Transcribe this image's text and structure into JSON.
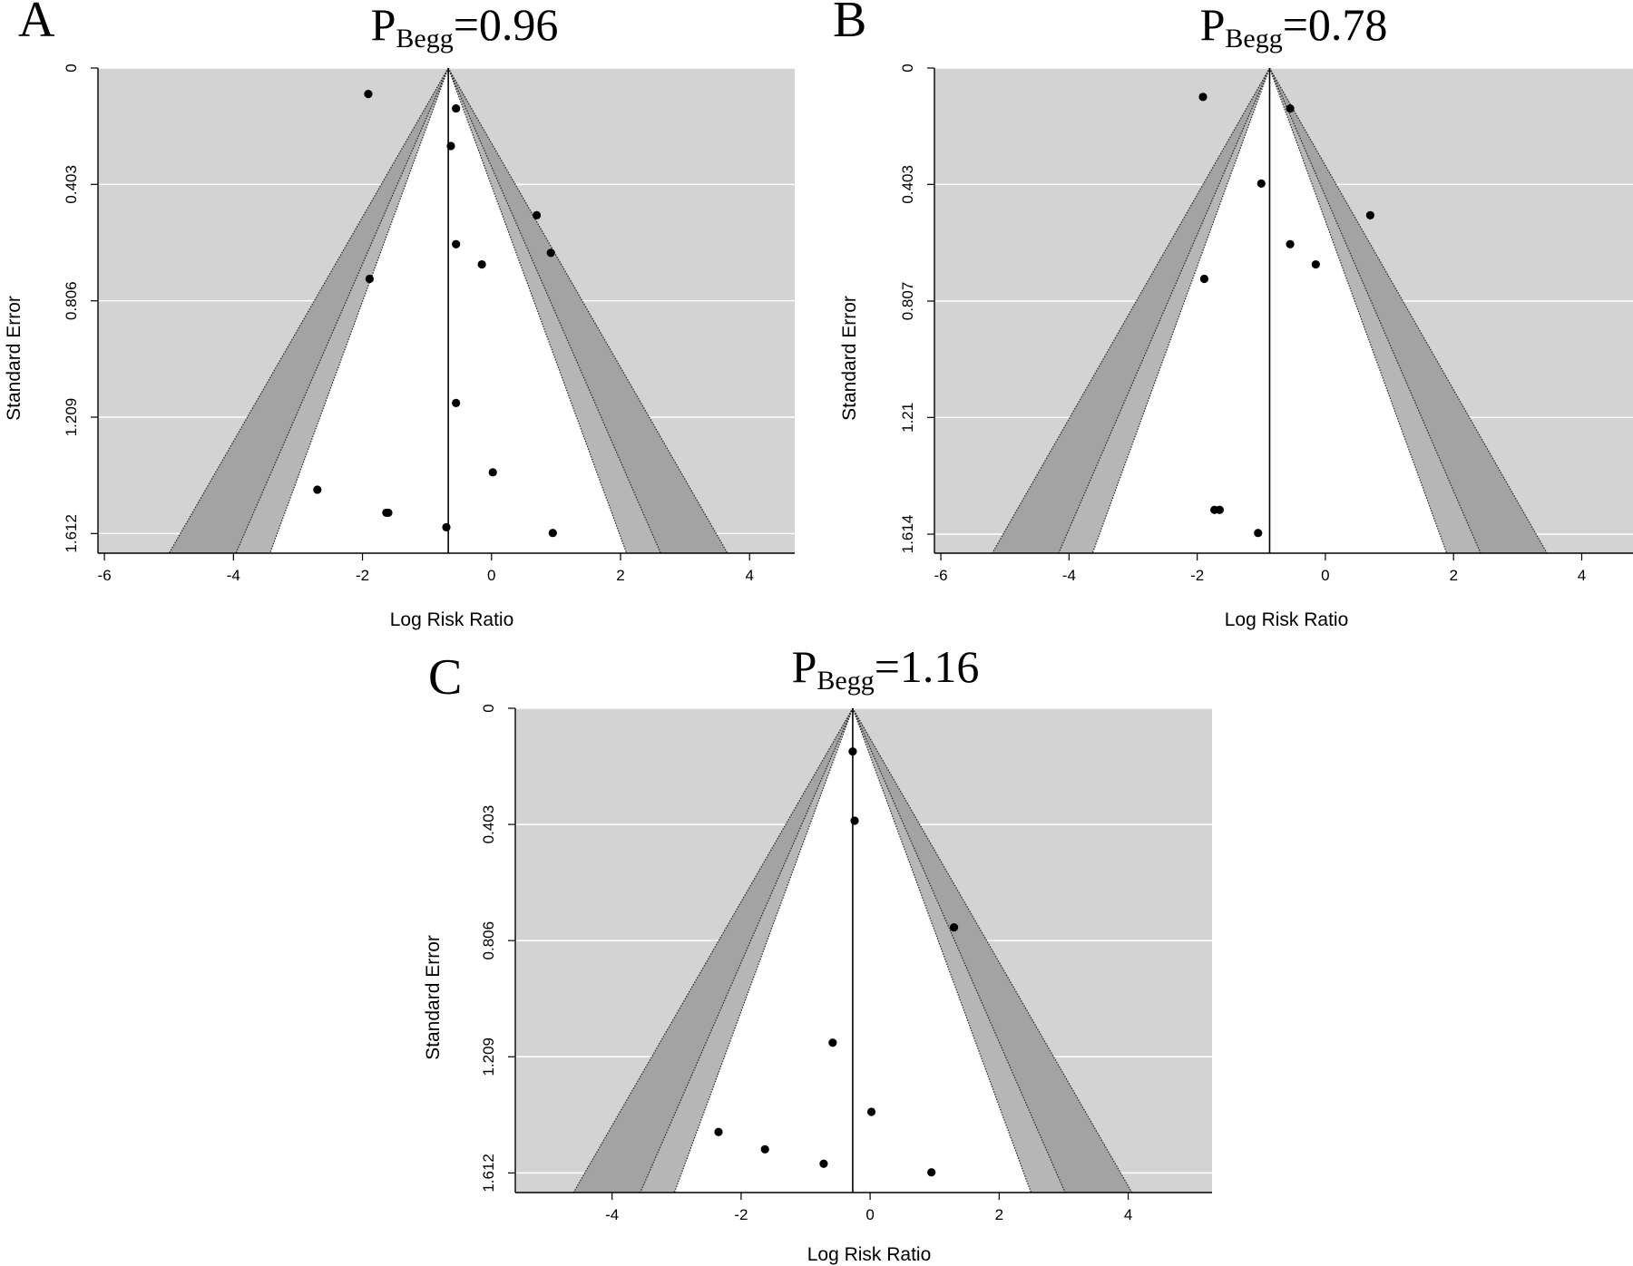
{
  "chart_data": [
    {
      "type": "scatter",
      "panel": "A",
      "title": {
        "p": "P",
        "sub": "Begg",
        "value": "=0.96"
      },
      "xlabel": "Log Risk Ratio",
      "ylabel": "Standard Error",
      "xlim": [
        -6.1,
        4.7
      ],
      "ylim": [
        0,
        1.68
      ],
      "y_reversed": true,
      "xticks": [
        -6,
        -4,
        -2,
        0,
        2,
        4
      ],
      "xtick_labels": [
        "-6",
        "-4",
        "-2",
        "0",
        "2",
        "4"
      ],
      "yticks": [
        0,
        0.403,
        0.806,
        1.209,
        1.612
      ],
      "ytick_labels": [
        "0",
        "0.403",
        "0.806",
        "1.209",
        "1.612"
      ],
      "center": -0.67,
      "grid": "horizontal",
      "contours": [
        {
          "z": 1.645,
          "color": "#ffffff"
        },
        {
          "z": 1.96,
          "color": "#b6b6b6"
        },
        {
          "z": 2.576,
          "color": "#a3a3a3"
        }
      ],
      "background": "#d3d3d3",
      "points": [
        {
          "x": -1.91,
          "y": 0.09
        },
        {
          "x": -0.55,
          "y": 0.14
        },
        {
          "x": -0.63,
          "y": 0.27
        },
        {
          "x": 0.7,
          "y": 0.51
        },
        {
          "x": 0.92,
          "y": 0.64
        },
        {
          "x": -0.55,
          "y": 0.61
        },
        {
          "x": -0.15,
          "y": 0.68
        },
        {
          "x": -1.89,
          "y": 0.73
        },
        {
          "x": -0.55,
          "y": 1.16
        },
        {
          "x": 0.02,
          "y": 1.4
        },
        {
          "x": -2.7,
          "y": 1.46
        },
        {
          "x": -1.63,
          "y": 1.54
        },
        {
          "x": -1.6,
          "y": 1.54
        },
        {
          "x": -0.7,
          "y": 1.59
        },
        {
          "x": 0.95,
          "y": 1.61
        }
      ]
    },
    {
      "type": "scatter",
      "panel": "B",
      "title": {
        "p": "P",
        "sub": "Begg",
        "value": "=0.78"
      },
      "xlabel": "Log Risk Ratio",
      "ylabel": "Standard Error",
      "xlim": [
        -6.1,
        4.8
      ],
      "ylim": [
        0,
        1.68
      ],
      "y_reversed": true,
      "xticks": [
        -6,
        -4,
        -2,
        0,
        2,
        4
      ],
      "xtick_labels": [
        "-6",
        "-4",
        "-2",
        "0",
        "2",
        "4"
      ],
      "yticks": [
        0,
        0.403,
        0.807,
        1.21,
        1.614
      ],
      "ytick_labels": [
        "0",
        "0.403",
        "0.807",
        "1.21",
        "1.614"
      ],
      "center": -0.87,
      "grid": "horizontal",
      "contours": [
        {
          "z": 1.645,
          "color": "#ffffff"
        },
        {
          "z": 1.96,
          "color": "#b6b6b6"
        },
        {
          "z": 2.576,
          "color": "#a3a3a3"
        }
      ],
      "background": "#d3d3d3",
      "points": [
        {
          "x": -1.91,
          "y": 0.1
        },
        {
          "x": -0.55,
          "y": 0.14
        },
        {
          "x": -1.0,
          "y": 0.4
        },
        {
          "x": 0.7,
          "y": 0.51
        },
        {
          "x": -0.55,
          "y": 0.61
        },
        {
          "x": -0.15,
          "y": 0.68
        },
        {
          "x": -1.89,
          "y": 0.73
        },
        {
          "x": -1.73,
          "y": 1.53
        },
        {
          "x": -1.65,
          "y": 1.53
        },
        {
          "x": -1.05,
          "y": 1.61
        }
      ]
    },
    {
      "type": "scatter",
      "panel": "C",
      "title": {
        "p": "P",
        "sub": "Begg",
        "value": "=1.16"
      },
      "xlabel": "Log Risk Ratio",
      "ylabel": "Standard Error",
      "xlim": [
        -5.5,
        5.3
      ],
      "ylim": [
        0,
        1.68
      ],
      "y_reversed": true,
      "xticks": [
        -4,
        -2,
        0,
        2,
        4
      ],
      "xtick_labels": [
        "-4",
        "-2",
        "0",
        "2",
        "4"
      ],
      "yticks": [
        0,
        0.403,
        0.806,
        1.209,
        1.612
      ],
      "ytick_labels": [
        "0",
        "0.403",
        "0.806",
        "1.209",
        "1.612"
      ],
      "center": -0.27,
      "grid": "horizontal",
      "contours": [
        {
          "z": 1.645,
          "color": "#ffffff"
        },
        {
          "z": 1.96,
          "color": "#b6b6b6"
        },
        {
          "z": 2.576,
          "color": "#a3a3a3"
        }
      ],
      "background": "#d3d3d3",
      "points": [
        {
          "x": -0.27,
          "y": 0.15
        },
        {
          "x": -0.24,
          "y": 0.39
        },
        {
          "x": 1.3,
          "y": 0.76
        },
        {
          "x": -0.58,
          "y": 1.16
        },
        {
          "x": 0.02,
          "y": 1.4
        },
        {
          "x": -2.35,
          "y": 1.47
        },
        {
          "x": -1.63,
          "y": 1.53
        },
        {
          "x": -0.72,
          "y": 1.58
        },
        {
          "x": 0.95,
          "y": 1.61
        }
      ]
    }
  ]
}
